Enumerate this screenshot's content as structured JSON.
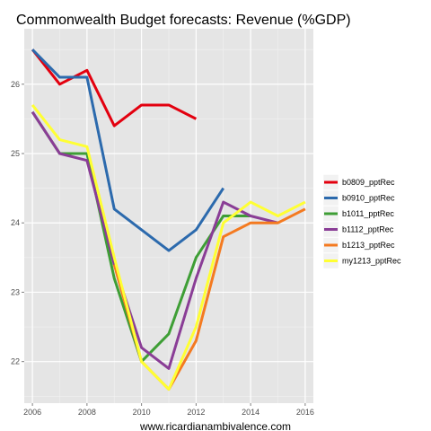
{
  "chart_data": {
    "type": "line",
    "title": "Commonwealth Budget forecasts: Revenue (%GDP)",
    "xlabel": "www.ricardianambivalence.com",
    "ylabel": "",
    "xlim": [
      2005.7,
      2016.3
    ],
    "ylim": [
      21.4,
      26.8
    ],
    "x_ticks": [
      2006,
      2008,
      2010,
      2012,
      2014,
      2016
    ],
    "x_tick_labels": [
      "2006",
      "2008",
      "2010",
      "2012",
      "2014",
      "2016"
    ],
    "y_ticks": [
      22,
      23,
      24,
      25,
      26
    ],
    "y_tick_labels": [
      "22",
      "23",
      "24",
      "25",
      "26"
    ],
    "grid": true,
    "legend_position": "right",
    "background": "#e5e5e5",
    "series": [
      {
        "name": "b0809_pptRec",
        "color": "#e3000f",
        "points": [
          [
            2006,
            26.5
          ],
          [
            2007,
            26.0
          ],
          [
            2008,
            26.2
          ],
          [
            2009,
            25.4
          ],
          [
            2010,
            25.7
          ],
          [
            2011,
            25.7
          ],
          [
            2012,
            25.5
          ]
        ]
      },
      {
        "name": "b0910_pptRec",
        "color": "#2c6aad",
        "points": [
          [
            2006,
            26.5
          ],
          [
            2007,
            26.1
          ],
          [
            2008,
            26.1
          ],
          [
            2009,
            24.2
          ],
          [
            2010,
            23.9
          ],
          [
            2011,
            23.6
          ],
          [
            2012,
            23.9
          ],
          [
            2013,
            24.5
          ]
        ]
      },
      {
        "name": "b1011_pptRec",
        "color": "#3e9e35",
        "points": [
          [
            2006,
            25.6
          ],
          [
            2007,
            25.0
          ],
          [
            2008,
            25.0
          ],
          [
            2009,
            23.2
          ],
          [
            2010,
            22.0
          ],
          [
            2011,
            22.4
          ],
          [
            2012,
            23.5
          ],
          [
            2013,
            24.1
          ],
          [
            2014,
            24.1
          ]
        ]
      },
      {
        "name": "b1112_pptRec",
        "color": "#8a3d96",
        "points": [
          [
            2006,
            25.6
          ],
          [
            2007,
            25.0
          ],
          [
            2008,
            24.9
          ],
          [
            2009,
            23.4
          ],
          [
            2010,
            22.2
          ],
          [
            2011,
            21.9
          ],
          [
            2012,
            23.2
          ],
          [
            2013,
            24.3
          ],
          [
            2014,
            24.1
          ],
          [
            2015,
            24.0
          ]
        ]
      },
      {
        "name": "b1213_pptRec",
        "color": "#f47a20",
        "points": [
          [
            2009,
            23.4
          ],
          [
            2010,
            22.0
          ],
          [
            2011,
            21.6
          ],
          [
            2012,
            22.3
          ],
          [
            2013,
            23.8
          ],
          [
            2014,
            24.0
          ],
          [
            2015,
            24.0
          ],
          [
            2016,
            24.2
          ]
        ]
      },
      {
        "name": "my1213_pptRec",
        "color": "#ffff33",
        "points": [
          [
            2006,
            25.7
          ],
          [
            2007,
            25.2
          ],
          [
            2008,
            25.1
          ],
          [
            2009,
            23.5
          ],
          [
            2010,
            22.0
          ],
          [
            2011,
            21.6
          ],
          [
            2012,
            22.5
          ],
          [
            2013,
            24.0
          ],
          [
            2014,
            24.3
          ],
          [
            2015,
            24.1
          ],
          [
            2016,
            24.3
          ]
        ]
      }
    ]
  }
}
